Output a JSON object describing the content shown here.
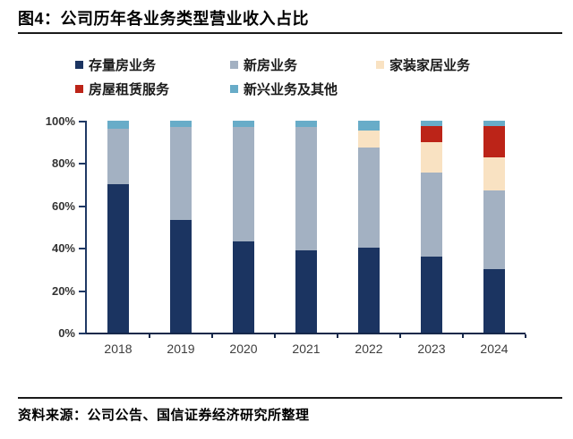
{
  "figure": {
    "title": "图4：公司历年各业务类型营业收入占比",
    "source": "资料来源：公司公告、国信证券经济研究所整理"
  },
  "chart_data": {
    "type": "bar",
    "subtype": "stacked-percentage-column",
    "title": "公司历年各业务类型营业收入占比",
    "categories": [
      "2018",
      "2019",
      "2020",
      "2021",
      "2022",
      "2023",
      "2024"
    ],
    "series": [
      {
        "name": "存量房业务",
        "color": "#1b3461",
        "values": [
          70,
          53,
          43,
          39,
          40,
          36,
          30
        ]
      },
      {
        "name": "新房业务",
        "color": "#a3b1c2",
        "values": [
          26,
          44,
          54,
          58,
          47.5,
          39.5,
          37
        ]
      },
      {
        "name": "家装家居业务",
        "color": "#f9e2c2",
        "values": [
          0,
          0,
          0,
          0,
          8,
          14.5,
          15.5
        ]
      },
      {
        "name": "房屋租赁服务",
        "color": "#bc2418",
        "values": [
          0,
          0,
          0,
          0,
          0,
          7.5,
          15
        ]
      },
      {
        "name": "新兴业务及其他",
        "color": "#68acc8",
        "values": [
          4,
          3,
          3,
          3,
          4.5,
          2.5,
          2.5
        ]
      }
    ],
    "y_ticks": [
      "0%",
      "20%",
      "40%",
      "60%",
      "80%",
      "100%"
    ],
    "ylim": [
      0,
      100
    ],
    "xlabel": "",
    "ylabel": "",
    "grid": false,
    "legend_position": "top",
    "axis_color": "#1f3864"
  }
}
